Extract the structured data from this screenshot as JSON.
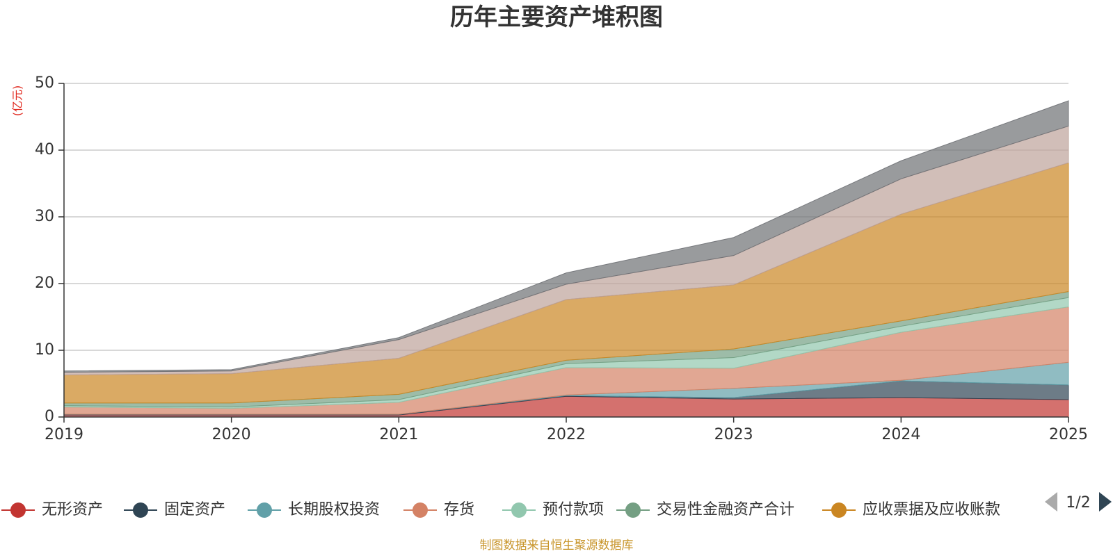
{
  "chart_data": {
    "type": "area",
    "stacked": true,
    "title": "历年主要资产堆积图",
    "unit_label": "(亿元)",
    "x": [
      "2019",
      "2020",
      "2021",
      "2022",
      "2023",
      "2024",
      "2025"
    ],
    "ylim": [
      0,
      50
    ],
    "yticks": [
      0,
      10,
      20,
      30,
      40,
      50
    ],
    "grid": true,
    "series": [
      {
        "name": "无形资产",
        "color": "#c23531",
        "values": [
          0.3,
          0.3,
          0.3,
          3.1,
          2.7,
          2.9,
          2.6
        ]
      },
      {
        "name": "固定资产",
        "color": "#2f4554",
        "values": [
          0.1,
          0.1,
          0.1,
          0.1,
          0.2,
          2.5,
          2.2
        ]
      },
      {
        "name": "长期股权投资",
        "color": "#61a0a8",
        "values": [
          0.0,
          0.0,
          0.0,
          0.1,
          1.4,
          0.1,
          3.4
        ]
      },
      {
        "name": "存货",
        "color": "#d48265",
        "values": [
          1.1,
          0.9,
          1.8,
          4.1,
          3.0,
          7.2,
          8.3
        ]
      },
      {
        "name": "预付款项",
        "color": "#91c7ae",
        "values": [
          0.2,
          0.2,
          0.4,
          0.6,
          1.6,
          0.9,
          1.4
        ]
      },
      {
        "name": "交易性金融资产合计",
        "color": "#749f83",
        "values": [
          0.4,
          0.6,
          0.8,
          0.5,
          1.3,
          0.8,
          0.9
        ]
      },
      {
        "name": "应收票据及应收账款",
        "color": "#ca8622",
        "values": [
          4.2,
          4.4,
          5.4,
          9.1,
          9.6,
          16.0,
          19.3
        ]
      },
      {
        "name": "",
        "color": "#bda29a",
        "values": [
          0.4,
          0.4,
          2.8,
          2.3,
          4.4,
          5.3,
          5.5
        ]
      },
      {
        "name": "",
        "color": "#6e7074",
        "values": [
          0.2,
          0.2,
          0.3,
          1.7,
          2.7,
          2.7,
          3.8
        ]
      }
    ],
    "legend": {
      "position": "bottom",
      "visible_items": [
        "无形资产",
        "固定资产",
        "长期股权投资",
        "存货",
        "预付款项",
        "交易性金融资产合计",
        "应收票据及应收账款"
      ],
      "page_indicator": "1/2"
    },
    "source": "制图数据来自恒生聚源数据库"
  }
}
